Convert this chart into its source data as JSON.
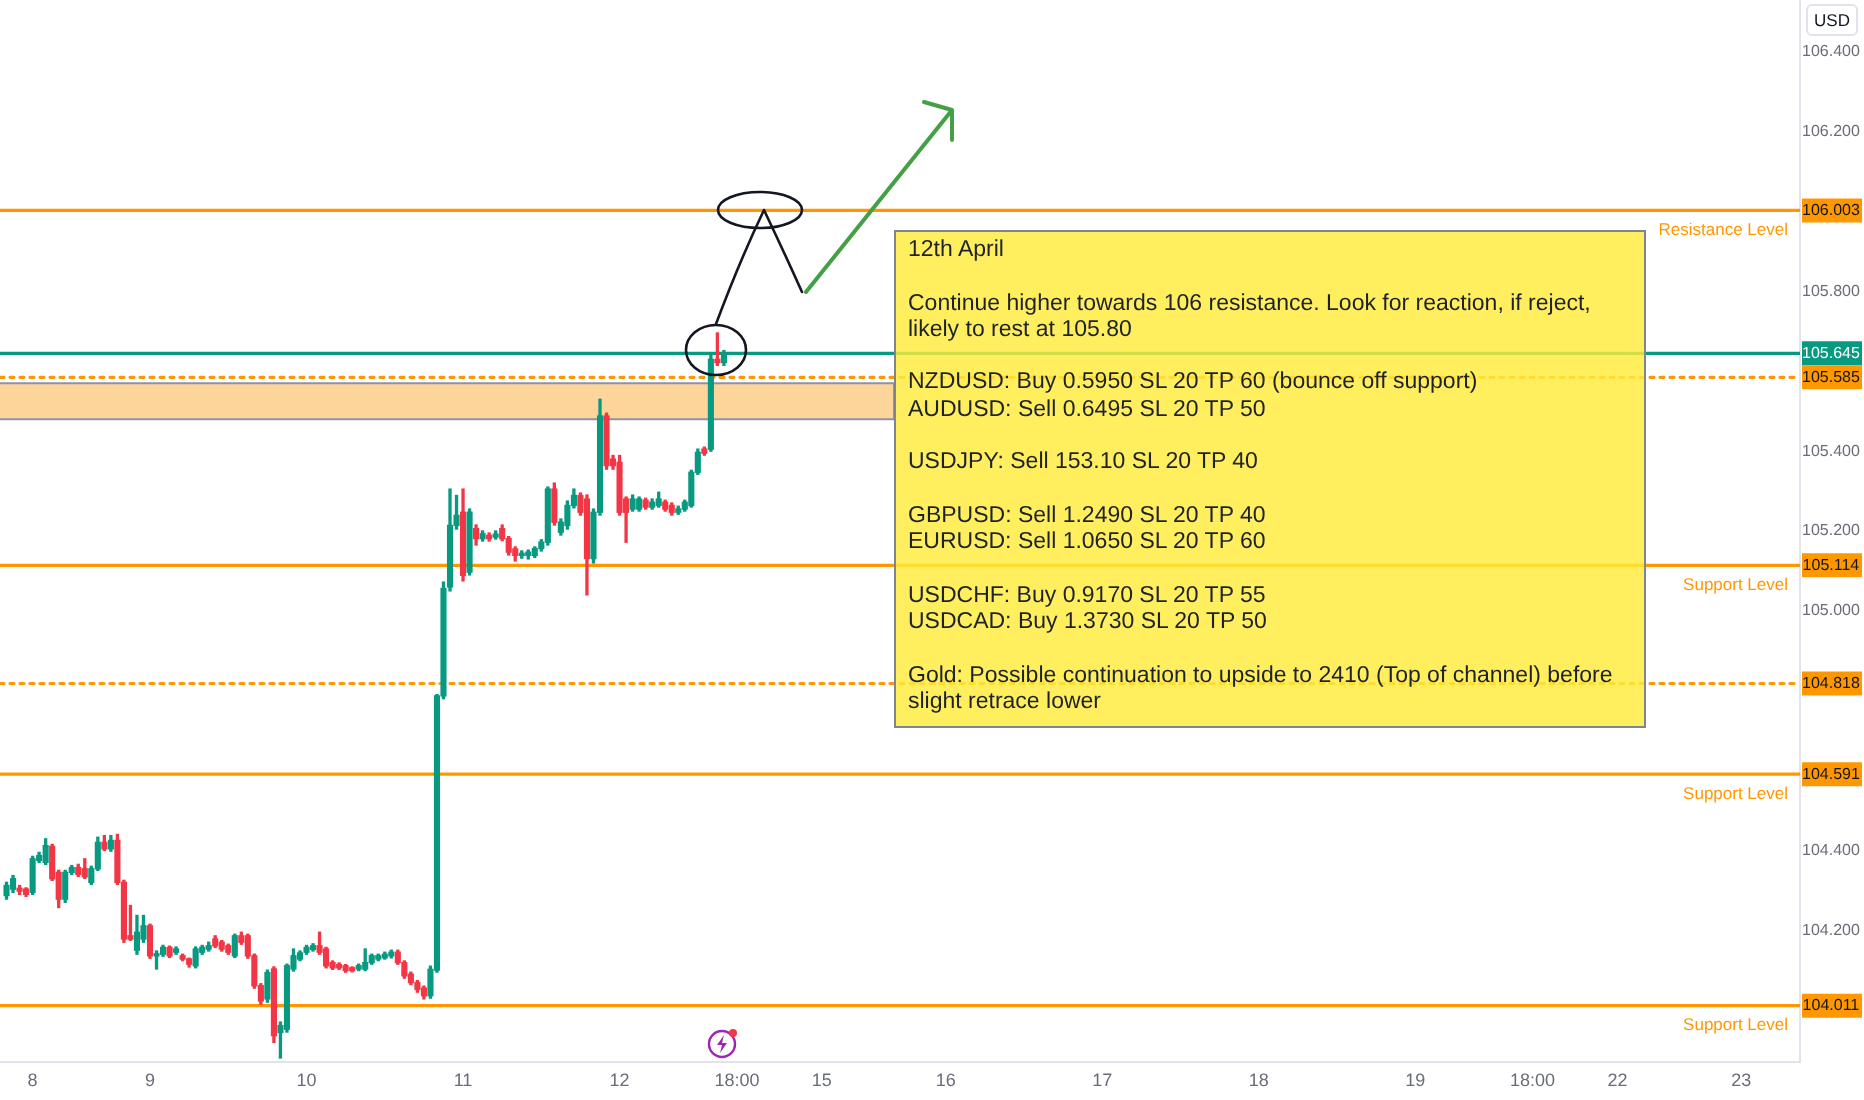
{
  "chart_data": {
    "type": "candlestick",
    "ylabel": "USD",
    "categories": [
      null,
      null,
      null,
      null,
      null,
      "8",
      null,
      null,
      null,
      null,
      null,
      null,
      null,
      null,
      null,
      null,
      null,
      null,
      null,
      null,
      null,
      null,
      null,
      "9",
      null,
      null,
      null,
      null,
      null,
      null,
      null,
      null,
      null,
      null,
      null,
      null,
      null,
      null,
      null,
      null,
      null,
      null,
      null,
      null,
      null,
      null,
      null,
      "10",
      null,
      null,
      null,
      null,
      null,
      null,
      null,
      null,
      null,
      null,
      null,
      null,
      null,
      null,
      null,
      null,
      null,
      null,
      null,
      null,
      null,
      null,
      null,
      "11",
      null,
      null,
      null,
      null,
      null,
      null,
      null,
      null,
      null,
      null,
      null,
      null,
      null,
      null,
      null,
      null,
      null,
      null,
      null,
      null,
      null,
      null,
      null,
      "12",
      null,
      null,
      null,
      null,
      null,
      null,
      null,
      null,
      null,
      null,
      null,
      null,
      null,
      null,
      null,
      null,
      null,
      "18:00",
      null,
      null,
      null,
      null,
      null,
      null,
      null,
      null,
      null,
      null,
      null,
      null,
      "15",
      null,
      null,
      null,
      null,
      null,
      null,
      null,
      null,
      null,
      null,
      null,
      null,
      null,
      null,
      null,
      null,
      null,
      null,
      "16",
      null,
      null,
      null,
      null,
      null,
      null,
      null,
      null,
      null,
      null,
      null,
      null,
      null,
      null,
      null,
      null,
      null,
      null,
      null,
      null,
      null,
      null,
      null,
      "17",
      null,
      null,
      null,
      null,
      null,
      null,
      null,
      null,
      null,
      null,
      null,
      null,
      null,
      null,
      null,
      null,
      null,
      null,
      null,
      null,
      null,
      null,
      null,
      "18",
      null,
      null,
      null,
      null,
      null,
      null,
      null,
      null,
      null,
      null,
      null,
      null,
      null,
      null,
      null,
      null,
      null,
      null,
      null,
      null,
      null,
      null,
      null,
      "19",
      null,
      null,
      null,
      null,
      null,
      null,
      null,
      null,
      null,
      null,
      null,
      null,
      null,
      null,
      null,
      null,
      null,
      "18:00",
      null,
      null,
      null,
      null,
      null,
      null,
      null,
      null,
      null,
      null,
      null,
      null,
      "22",
      null,
      null,
      null,
      null,
      null,
      null,
      null,
      null,
      null,
      null,
      null,
      null,
      null,
      null,
      null,
      null,
      null,
      null,
      "23",
      null,
      null,
      null,
      null,
      null,
      null,
      null,
      null,
      null
    ],
    "ohlc": [
      null,
      [
        104.287,
        104.32,
        104.278,
        104.312
      ],
      [
        104.303,
        104.337,
        104.295,
        104.329
      ],
      [
        104.305,
        104.312,
        104.29,
        104.298
      ],
      [
        104.303,
        104.306,
        104.285,
        104.29
      ],
      [
        104.295,
        104.385,
        104.29,
        104.379
      ],
      [
        104.375,
        104.395,
        104.37,
        104.387
      ],
      [
        104.37,
        104.429,
        104.365,
        104.412
      ],
      [
        104.41,
        104.415,
        104.325,
        104.329
      ],
      [
        104.345,
        104.35,
        104.257,
        104.278
      ],
      [
        104.278,
        104.35,
        104.27,
        104.345
      ],
      [
        104.345,
        104.362,
        104.34,
        104.357
      ],
      [
        104.357,
        104.365,
        104.335,
        104.34
      ],
      [
        104.354,
        104.379,
        104.33,
        104.334
      ],
      [
        104.32,
        104.36,
        104.315,
        104.354
      ],
      [
        104.354,
        104.433,
        104.35,
        104.42
      ],
      [
        104.42,
        104.437,
        104.4,
        104.404
      ],
      [
        104.404,
        104.437,
        104.398,
        104.425
      ],
      [
        104.425,
        104.44,
        104.315,
        104.32
      ],
      [
        104.32,
        104.325,
        104.17,
        104.178
      ],
      [
        104.186,
        104.262,
        104.175,
        104.178
      ],
      [
        104.15,
        104.237,
        104.14,
        104.195
      ],
      [
        104.178,
        104.237,
        104.17,
        104.211
      ],
      [
        104.211,
        104.215,
        104.13,
        104.136
      ],
      [
        104.136,
        104.148,
        104.103,
        104.14
      ],
      [
        104.14,
        104.162,
        104.135,
        104.157
      ],
      [
        104.157,
        104.16,
        104.132,
        104.136
      ],
      [
        104.145,
        104.158,
        104.14,
        104.153
      ],
      [
        104.136,
        104.14,
        104.124,
        104.128
      ],
      [
        104.128,
        104.13,
        104.108,
        104.115
      ],
      [
        104.111,
        104.158,
        104.106,
        104.153
      ],
      [
        104.145,
        104.162,
        104.14,
        104.157
      ],
      [
        104.153,
        104.17,
        104.148,
        104.161
      ],
      [
        104.178,
        104.186,
        104.157,
        104.161
      ],
      [
        104.17,
        104.174,
        104.148,
        104.153
      ],
      [
        104.161,
        104.165,
        104.14,
        104.145
      ],
      [
        104.136,
        104.19,
        104.132,
        104.186
      ],
      [
        104.186,
        104.195,
        104.165,
        104.17
      ],
      [
        104.186,
        104.19,
        104.13,
        104.136
      ],
      [
        104.136,
        104.14,
        104.055,
        104.061
      ],
      [
        104.061,
        104.066,
        104.015,
        104.023
      ],
      [
        104.028,
        104.1,
        104.02,
        104.094
      ],
      [
        104.103,
        104.108,
        103.919,
        103.936
      ],
      [
        103.944,
        103.97,
        103.88,
        103.961
      ],
      [
        103.952,
        104.115,
        103.945,
        104.111
      ],
      [
        104.103,
        104.153,
        104.098,
        104.136
      ],
      [
        104.128,
        104.148,
        104.124,
        104.143
      ],
      [
        104.145,
        104.162,
        104.14,
        104.157
      ],
      [
        104.152,
        104.166,
        104.148,
        104.161
      ],
      [
        104.161,
        104.195,
        104.14,
        104.145
      ],
      [
        104.153,
        104.157,
        104.106,
        104.111
      ],
      [
        104.119,
        104.123,
        104.102,
        104.106
      ],
      [
        104.114,
        104.118,
        104.102,
        104.106
      ],
      [
        104.111,
        104.114,
        104.095,
        104.099
      ],
      [
        104.106,
        104.108,
        104.096,
        104.099
      ],
      [
        104.103,
        104.115,
        104.099,
        104.111
      ],
      [
        104.103,
        104.153,
        104.099,
        104.119
      ],
      [
        104.119,
        104.14,
        104.115,
        104.136
      ],
      [
        104.128,
        104.14,
        104.124,
        104.136
      ],
      [
        104.131,
        104.145,
        104.128,
        104.14
      ],
      [
        104.136,
        104.15,
        104.131,
        104.145
      ],
      [
        104.145,
        104.15,
        104.115,
        104.119
      ],
      [
        104.119,
        104.123,
        104.08,
        104.086
      ],
      [
        104.09,
        104.095,
        104.064,
        104.069
      ],
      [
        104.069,
        104.074,
        104.045,
        104.052
      ],
      [
        104.055,
        104.06,
        104.028,
        104.036
      ],
      [
        104.036,
        104.11,
        104.03,
        104.102
      ],
      [
        104.1,
        104.79,
        104.095,
        104.787
      ],
      [
        104.787,
        105.072,
        104.78,
        105.056
      ],
      [
        105.06,
        105.305,
        105.05,
        105.214
      ],
      [
        105.214,
        105.289,
        105.205,
        105.239
      ],
      [
        105.247,
        105.305,
        105.075,
        105.089
      ],
      [
        105.097,
        105.255,
        105.09,
        105.247
      ],
      [
        105.206,
        105.215,
        105.165,
        105.181
      ],
      [
        105.181,
        105.2,
        105.175,
        105.193
      ],
      [
        105.189,
        105.195,
        105.175,
        105.181
      ],
      [
        105.185,
        105.2,
        105.18,
        105.192
      ],
      [
        105.206,
        105.215,
        105.176,
        105.181
      ],
      [
        105.181,
        105.186,
        105.14,
        105.147
      ],
      [
        105.155,
        105.16,
        105.125,
        105.139
      ],
      [
        105.139,
        105.15,
        105.132,
        105.143
      ],
      [
        105.139,
        105.152,
        105.13,
        105.147
      ],
      [
        105.139,
        105.16,
        105.134,
        105.156
      ],
      [
        105.156,
        105.178,
        105.15,
        105.172
      ],
      [
        105.172,
        105.31,
        105.165,
        105.305
      ],
      [
        105.305,
        105.32,
        105.215,
        105.222
      ],
      [
        105.197,
        105.23,
        105.19,
        105.222
      ],
      [
        105.214,
        105.275,
        105.205,
        105.264
      ],
      [
        105.264,
        105.305,
        105.258,
        105.289
      ],
      [
        105.289,
        105.295,
        105.24,
        105.247
      ],
      [
        105.28,
        105.29,
        105.04,
        105.131
      ],
      [
        105.131,
        105.255,
        105.12,
        105.247
      ],
      [
        105.247,
        105.53,
        105.24,
        105.488
      ],
      [
        105.488,
        105.495,
        105.355,
        105.364
      ],
      [
        105.38,
        105.389,
        105.355,
        105.364
      ],
      [
        105.372,
        105.389,
        105.24,
        105.247
      ],
      [
        105.28,
        105.285,
        105.172,
        105.247
      ],
      [
        105.255,
        105.29,
        105.25,
        105.28
      ],
      [
        105.255,
        105.285,
        105.25,
        105.28
      ],
      [
        105.277,
        105.282,
        105.255,
        105.26
      ],
      [
        105.26,
        105.28,
        105.255,
        105.272
      ],
      [
        105.264,
        105.297,
        105.26,
        105.28
      ],
      [
        105.272,
        105.277,
        105.25,
        105.255
      ],
      [
        105.264,
        105.27,
        105.24,
        105.247
      ],
      [
        105.247,
        105.262,
        105.242,
        105.255
      ],
      [
        105.255,
        105.277,
        105.25,
        105.272
      ],
      [
        105.264,
        105.352,
        105.26,
        105.347
      ],
      [
        105.347,
        105.405,
        105.342,
        105.397
      ],
      [
        105.405,
        105.41,
        105.39,
        105.395
      ],
      [
        105.405,
        105.64,
        105.4,
        105.63
      ],
      [
        105.63,
        105.696,
        105.615,
        105.622
      ],
      [
        105.622,
        105.652,
        105.615,
        105.645
      ],
      null,
      null,
      null,
      null,
      null,
      null,
      null,
      null,
      null,
      null,
      null,
      null,
      null,
      null,
      null,
      null,
      null,
      null,
      null,
      null,
      null,
      null,
      null,
      null,
      null,
      null,
      null,
      null,
      null,
      null,
      null,
      null,
      null,
      null,
      null,
      null,
      null,
      null,
      null,
      null,
      null,
      null,
      null,
      null,
      null,
      null,
      null,
      null,
      null,
      null,
      null,
      null,
      null,
      null,
      null,
      null,
      null,
      null,
      null,
      null,
      null,
      null,
      null,
      null,
      null,
      null,
      null,
      null,
      null,
      null,
      null,
      null,
      null,
      null,
      null,
      null,
      null,
      null,
      null,
      null,
      null,
      null,
      null,
      null,
      null,
      null,
      null,
      null,
      null,
      null,
      null,
      null,
      null,
      null,
      null,
      null,
      null,
      null,
      null,
      null,
      null,
      null,
      null,
      null,
      null,
      null,
      null,
      null,
      null,
      null,
      null,
      null,
      null,
      null,
      null,
      null,
      null,
      null,
      null,
      null,
      null,
      null,
      null,
      null,
      null,
      null,
      null,
      null,
      null,
      null,
      null,
      null,
      null,
      null,
      null,
      null,
      null,
      null,
      null,
      null,
      null,
      null,
      null,
      null,
      null,
      null,
      null,
      null,
      null,
      null,
      null,
      null,
      null,
      null,
      null,
      null,
      null,
      null,
      null,
      null,
      null,
      null,
      null,
      null,
      null
    ],
    "colors": [
      null,
      "#089981",
      "#089981",
      "#f23645",
      "#f23645",
      "#089981",
      "#089981",
      "#089981",
      "#f23645",
      "#f23645",
      "#089981",
      "#089981",
      "#f23645",
      "#f23645",
      "#089981",
      "#089981",
      "#f23645",
      "#089981",
      "#f23645",
      "#f23645",
      "#f23645",
      "#089981",
      "#089981",
      "#f23645",
      "#089981",
      "#089981",
      "#f23645",
      "#089981",
      "#f23645",
      "#f23645",
      "#089981",
      "#089981",
      "#089981",
      "#f23645",
      "#f23645",
      "#f23645",
      "#089981",
      "#f23645",
      "#f23645",
      "#f23645",
      "#f23645",
      "#089981",
      "#f23645",
      "#089981",
      "#089981",
      "#089981",
      "#089981",
      "#089981",
      "#089981",
      "#f23645",
      "#f23645",
      "#f23645",
      "#f23645",
      "#f23645",
      "#f23645",
      "#089981",
      "#089981",
      "#089981",
      "#089981",
      "#089981",
      "#089981",
      "#f23645",
      "#f23645",
      "#f23645",
      "#f23645",
      "#f23645",
      "#089981",
      "#089981",
      "#089981",
      "#089981",
      "#089981",
      "#f23645",
      "#089981",
      "#f23645",
      "#089981",
      "#f23645",
      "#089981",
      "#f23645",
      "#f23645",
      "#f23645",
      "#089981",
      "#089981",
      "#089981",
      "#089981",
      "#089981",
      "#f23645",
      "#089981",
      "#089981",
      "#089981",
      "#f23645",
      "#f23645",
      "#089981",
      "#089981",
      "#f23645",
      "#f23645",
      "#f23645",
      "#f23645",
      "#089981",
      "#089981",
      "#f23645",
      "#089981",
      "#089981",
      "#f23645",
      "#f23645",
      "#089981",
      "#089981",
      "#089981",
      "#089981",
      "#f23645",
      "#089981",
      "#f23645",
      "#089981",
      null,
      null,
      null,
      null,
      null,
      null,
      null,
      null,
      null,
      null,
      null,
      null,
      null,
      null,
      null,
      null,
      null,
      null,
      null,
      null,
      null,
      null,
      null,
      null,
      null,
      null,
      null,
      null,
      null,
      null,
      null,
      null,
      null,
      null,
      null,
      null,
      null,
      null,
      null,
      null,
      null,
      null,
      null,
      null,
      null,
      null,
      null,
      null,
      null,
      null,
      null,
      null,
      null,
      null,
      null,
      null,
      null,
      null,
      null,
      null,
      null,
      null,
      null,
      null,
      null,
      null,
      null,
      null,
      null,
      null,
      null,
      null,
      null,
      null,
      null,
      null,
      null,
      null,
      null,
      null,
      null,
      null,
      null,
      null,
      null,
      null,
      null,
      null,
      null,
      null,
      null,
      null,
      null,
      null,
      null,
      null,
      null,
      null,
      null,
      null,
      null,
      null,
      null,
      null,
      null,
      null,
      null,
      null,
      null,
      null,
      null,
      null,
      null,
      null,
      null,
      null,
      null,
      null,
      null,
      null,
      null,
      null,
      null,
      null,
      null,
      null,
      null,
      null,
      null,
      null,
      null,
      null,
      null,
      null,
      null,
      null,
      null,
      null,
      null,
      null,
      null,
      null,
      null,
      null,
      null,
      null,
      null,
      null,
      null,
      null,
      null,
      null,
      null,
      null,
      null,
      null,
      null,
      null,
      null,
      null,
      null,
      null,
      null,
      null,
      null
    ],
    "ylim": [
      103.87,
      106.53
    ],
    "yticks": [
      104.011,
      {
        "value": 104.2,
        "label": "104.200"
      },
      {
        "value": 104.4,
        "label": "104.400"
      },
      104.591,
      104.818,
      {
        "value": 105,
        "label": "105.000"
      },
      105.114,
      {
        "value": 105.2,
        "label": "105.200"
      },
      {
        "value": 105.4,
        "label": "105.400"
      },
      105.585,
      105.645,
      {
        "value": 105.8,
        "label": "105.800"
      },
      106.003,
      {
        "value": 106.2,
        "label": "106.200"
      },
      {
        "value": 106.4,
        "label": "106.400"
      }
    ],
    "grid": false,
    "legend": false,
    "ref_lines": [
      {
        "axis": "y",
        "value": 106.003,
        "label": "Resistance Level",
        "color": "#ff9800"
      },
      {
        "axis": "y",
        "value": 105.645,
        "color": "#089981"
      },
      {
        "axis": "y",
        "value": 105.585,
        "color": "#ff9800",
        "line_style": "dotted"
      },
      {
        "axis": "y",
        "value": 105.114,
        "label": "Support Level",
        "color": "#ff9800"
      },
      {
        "axis": "y",
        "value": 104.818,
        "color": "#ff9800",
        "line_style": "dotted"
      },
      {
        "axis": "y",
        "value": 104.591,
        "label": "Support Level",
        "color": "#ff9800"
      },
      {
        "axis": "y",
        "value": 104.011,
        "label": "Support Level",
        "color": "#ff9800"
      }
    ],
    "bands": [
      {
        "axis": "y",
        "from": 105.48,
        "to": 105.57,
        "color": "#fdd49a"
      }
    ],
    "annotations": [
      "12th April",
      "Continue higher towards 106 resistance. Look for reaction, if reject, likely to rest at 105.80",
      "NZDUSD: Buy 0.5950 SL 20 TP 60 (bounce off support)\nAUDUSD: Sell 0.6495 SL 20 TP 50",
      "USDJPY: Sell 153.10 SL 20 TP 40",
      "GBPUSD: Sell 1.2490 SL 20 TP 40\nEURUSD: Sell 1.0650 SL 20 TP 60",
      "USDCHF: Buy 0.9170 SL 20 TP 55\nUSDCAD: Buy 1.3730 SL 20 TP 50",
      "Gold: Possible continuation to upside to 2410 (Top of channel) before slight retrace lower"
    ]
  }
}
